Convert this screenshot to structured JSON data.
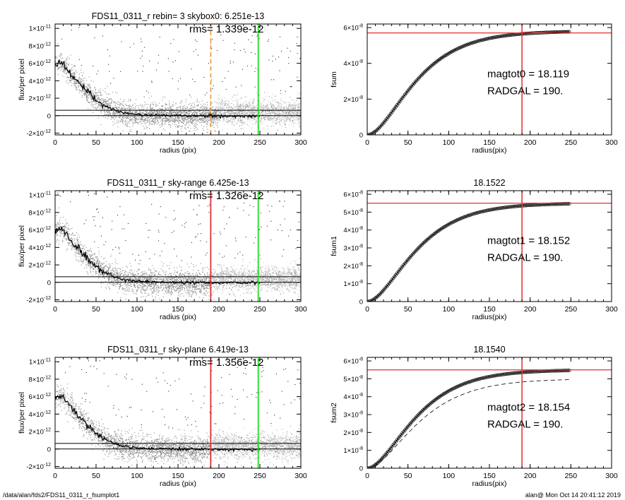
{
  "footer": {
    "path": "/data/alan/fds2/FDS11_0311_r_fsumplot1",
    "stamp": "alan@  Mon Oct 14 20:41:12 2019"
  },
  "chart_data": [
    {
      "type": "scatter",
      "title": "FDS11_0311_r rebin= 3    skybox0:  6.251e-13",
      "annotation": "rms= 1.339e-12",
      "xlabel": "radius (pix)",
      "ylabel": "flux/per pixel",
      "xlim": [
        0,
        300
      ],
      "ylim": [
        -2.2e-12,
        1.05e-11
      ],
      "xticks": [
        "0",
        "50",
        "100",
        "150",
        "200",
        "250",
        "300"
      ],
      "yticks": [
        {
          "value": -2e-12,
          "mant": "-2×10",
          "exp": "-12"
        },
        {
          "value": 0,
          "mant": "0",
          "exp": ""
        },
        {
          "value": 2e-12,
          "mant": "2×10",
          "exp": "-12"
        },
        {
          "value": 4e-12,
          "mant": "4×10",
          "exp": "-12"
        },
        {
          "value": 6e-12,
          "mant": "6×10",
          "exp": "-12"
        },
        {
          "value": 8e-12,
          "mant": "8×10",
          "exp": "-12"
        },
        {
          "value": 1e-11,
          "mant": "1×10",
          "exp": "-11"
        }
      ],
      "profile": {
        "x": [
          0,
          5,
          10,
          15,
          20,
          30,
          40,
          50,
          60,
          70,
          80,
          90,
          100,
          120,
          150,
          200,
          250
        ],
        "y": [
          5.9e-12,
          6.2e-12,
          5.9e-12,
          5.3e-12,
          4.7e-12,
          3.6e-12,
          2.6e-12,
          1.85e-12,
          1.2e-12,
          7e-13,
          3.8e-13,
          2.2e-13,
          1.2e-13,
          5e-14,
          0.0,
          -5e-14,
          -5e-14
        ]
      },
      "hlines": [
        {
          "y": 6.251e-13,
          "color": "#000000"
        },
        {
          "y": 0,
          "color": "#000000"
        }
      ],
      "vlines": [
        {
          "x": 190,
          "color": "#f0a040",
          "dashed": true
        },
        {
          "x": 248,
          "color": "#22dd22",
          "dashed": false
        }
      ],
      "sky_start": 198
    },
    {
      "type": "line",
      "xlabel": "radius(pix)",
      "ylabel": "fsum",
      "xlim": [
        0,
        300
      ],
      "ylim": [
        0,
        6.2e-08
      ],
      "xticks": [
        "0",
        "50",
        "100",
        "150",
        "200",
        "250",
        "300"
      ],
      "yticks": [
        {
          "value": 0,
          "mant": "0",
          "exp": ""
        },
        {
          "value": 2e-08,
          "mant": "2×10",
          "exp": "-8"
        },
        {
          "value": 4e-08,
          "mant": "4×10",
          "exp": "-8"
        },
        {
          "value": 6e-08,
          "mant": "6×10",
          "exp": "-8"
        }
      ],
      "curve": {
        "total": 5.8e-08,
        "scale": 58
      },
      "hline": 5.7e-08,
      "vline": 190,
      "labels": [
        "magtot0 =  18.119",
        "RADGAL =    190."
      ]
    },
    {
      "type": "scatter",
      "title": "FDS11_0311_r sky-range  6.425e-13",
      "annotation": "rms= 1.326e-12",
      "xlabel": "radius (pix)",
      "ylabel": "flux/per pixel",
      "xlim": [
        0,
        300
      ],
      "ylim": [
        -2.2e-12,
        1.05e-11
      ],
      "xticks": [
        "0",
        "50",
        "100",
        "150",
        "200",
        "250",
        "300"
      ],
      "yticks": [
        {
          "value": -2e-12,
          "mant": "-2×10",
          "exp": "-12"
        },
        {
          "value": 0,
          "mant": "0",
          "exp": ""
        },
        {
          "value": 2e-12,
          "mant": "2×10",
          "exp": "-12"
        },
        {
          "value": 4e-12,
          "mant": "4×10",
          "exp": "-12"
        },
        {
          "value": 6e-12,
          "mant": "6×10",
          "exp": "-12"
        },
        {
          "value": 8e-12,
          "mant": "8×10",
          "exp": "-12"
        },
        {
          "value": 1e-11,
          "mant": "1×10",
          "exp": "-11"
        }
      ],
      "profile": {
        "x": [
          0,
          5,
          10,
          15,
          20,
          30,
          40,
          50,
          60,
          70,
          80,
          90,
          100,
          120,
          150,
          200,
          250
        ],
        "y": [
          5.9e-12,
          6.2e-12,
          5.9e-12,
          5.3e-12,
          4.7e-12,
          3.6e-12,
          2.6e-12,
          1.85e-12,
          1.2e-12,
          7e-13,
          3.8e-13,
          2.2e-13,
          1.2e-13,
          5e-14,
          0.0,
          -5e-14,
          -5e-14
        ]
      },
      "hlines": [
        {
          "y": 6.425e-13,
          "color": "#000000"
        },
        {
          "y": 0,
          "color": "#000000"
        }
      ],
      "vlines": [
        {
          "x": 190,
          "color": "#e03030",
          "dashed": false
        },
        {
          "x": 248,
          "color": "#22dd22",
          "dashed": false
        }
      ],
      "sky_start": 190
    },
    {
      "type": "line",
      "title": "18.1522",
      "xlabel": "radius(pix)",
      "ylabel": "fsum1",
      "xlim": [
        0,
        300
      ],
      "ylim": [
        0,
        6.2e-08
      ],
      "xticks": [
        "0",
        "50",
        "100",
        "150",
        "200",
        "250",
        "300"
      ],
      "yticks": [
        {
          "value": 0,
          "mant": "0",
          "exp": ""
        },
        {
          "value": 1e-08,
          "mant": "1×10",
          "exp": "-8"
        },
        {
          "value": 2e-08,
          "mant": "2×10",
          "exp": "-8"
        },
        {
          "value": 3e-08,
          "mant": "3×10",
          "exp": "-8"
        },
        {
          "value": 4e-08,
          "mant": "4×10",
          "exp": "-8"
        },
        {
          "value": 5e-08,
          "mant": "5×10",
          "exp": "-8"
        },
        {
          "value": 6e-08,
          "mant": "6×10",
          "exp": "-8"
        }
      ],
      "curve": {
        "total": 5.5e-08,
        "scale": 58
      },
      "hline": 5.5e-08,
      "vline": 190,
      "labels": [
        "magtot1 =  18.152",
        "RADGAL =    190."
      ]
    },
    {
      "type": "scatter",
      "title": "FDS11_0311_r sky-plane  6.419e-13",
      "annotation": "rms= 1.356e-12",
      "xlabel": "radius (pix)",
      "ylabel": "flux/per pixel",
      "xlim": [
        0,
        300
      ],
      "ylim": [
        -2.2e-12,
        1.05e-11
      ],
      "xticks": [
        "0",
        "50",
        "100",
        "150",
        "200",
        "250",
        "300"
      ],
      "yticks": [
        {
          "value": -2e-12,
          "mant": "-2×10",
          "exp": "-12"
        },
        {
          "value": 0,
          "mant": "0",
          "exp": ""
        },
        {
          "value": 2e-12,
          "mant": "2×10",
          "exp": "-12"
        },
        {
          "value": 4e-12,
          "mant": "4×10",
          "exp": "-12"
        },
        {
          "value": 6e-12,
          "mant": "6×10",
          "exp": "-12"
        },
        {
          "value": 8e-12,
          "mant": "8×10",
          "exp": "-12"
        },
        {
          "value": 1e-11,
          "mant": "1×10",
          "exp": "-11"
        }
      ],
      "profile": {
        "x": [
          0,
          5,
          10,
          15,
          20,
          30,
          40,
          50,
          60,
          70,
          80,
          90,
          100,
          120,
          150,
          200,
          250
        ],
        "y": [
          5.9e-12,
          6.2e-12,
          5.9e-12,
          5.3e-12,
          4.7e-12,
          3.6e-12,
          2.6e-12,
          1.85e-12,
          1.2e-12,
          7e-13,
          3.8e-13,
          2.2e-13,
          1.2e-13,
          5e-14,
          0.0,
          -5e-14,
          -5e-14
        ]
      },
      "hlines": [
        {
          "y": 6.419e-13,
          "color": "#000000"
        },
        {
          "y": 0,
          "color": "#000000"
        }
      ],
      "vlines": [
        {
          "x": 190,
          "color": "#e03030",
          "dashed": false
        },
        {
          "x": 248,
          "color": "#22dd22",
          "dashed": false
        }
      ],
      "sky_start": 190
    },
    {
      "type": "line",
      "title": "18.1540",
      "xlabel": "radius(pix)",
      "ylabel": "fsum2",
      "xlim": [
        0,
        300
      ],
      "ylim": [
        0,
        6.2e-08
      ],
      "xticks": [
        "0",
        "50",
        "100",
        "150",
        "200",
        "250",
        "300"
      ],
      "yticks": [
        {
          "value": 0,
          "mant": "0",
          "exp": ""
        },
        {
          "value": 1e-08,
          "mant": "1×10",
          "exp": "-8"
        },
        {
          "value": 2e-08,
          "mant": "2×10",
          "exp": "-8"
        },
        {
          "value": 3e-08,
          "mant": "3×10",
          "exp": "-8"
        },
        {
          "value": 4e-08,
          "mant": "4×10",
          "exp": "-8"
        },
        {
          "value": 5e-08,
          "mant": "5×10",
          "exp": "-8"
        },
        {
          "value": 6e-08,
          "mant": "6×10",
          "exp": "-8"
        }
      ],
      "curve": {
        "total": 5.5e-08,
        "scale": 58
      },
      "dashed_curve": {
        "total": 5e-08,
        "scale": 62
      },
      "hline": 5.5e-08,
      "vline": 190,
      "labels": [
        "magtot2 =  18.154",
        "RADGAL =    190."
      ]
    }
  ]
}
